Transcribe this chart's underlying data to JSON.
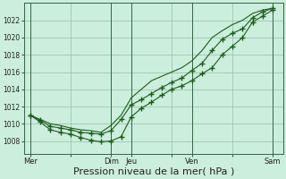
{
  "bg_color": "#cceedd",
  "grid_color": "#99bbaa",
  "line_color": "#1a5e1a",
  "marker_color": "#1a5e1a",
  "xlabel": "Pression niveau de la mer( hPa )",
  "xlabel_fontsize": 8,
  "ylim": [
    1006.5,
    1024.0
  ],
  "yticks": [
    1008,
    1010,
    1012,
    1014,
    1016,
    1018,
    1020,
    1022
  ],
  "xtick_labels": [
    "Mer",
    "",
    "Dim",
    "Jeu",
    "",
    "Ven",
    "",
    "Sam"
  ],
  "xtick_positions": [
    0,
    2,
    4,
    5,
    7,
    8,
    10,
    12
  ],
  "series1_x": [
    0,
    0.5,
    1,
    1.5,
    2,
    2.5,
    3,
    3.5,
    4,
    4.5,
    5,
    5.5,
    6,
    6.5,
    7,
    7.5,
    8,
    8.5,
    9,
    9.5,
    10,
    10.5,
    11,
    11.5,
    12
  ],
  "series1_y": [
    1011.0,
    1010.2,
    1009.3,
    1009.0,
    1008.8,
    1008.4,
    1008.1,
    1007.9,
    1008.0,
    1008.5,
    1010.8,
    1011.8,
    1012.5,
    1013.3,
    1014.0,
    1014.4,
    1015.0,
    1015.8,
    1016.5,
    1018.0,
    1019.0,
    1020.0,
    1021.8,
    1022.5,
    1023.2
  ],
  "series2_x": [
    0,
    0.5,
    1,
    1.5,
    2,
    2.5,
    3,
    3.5,
    4,
    4.5,
    5,
    5.5,
    6,
    6.5,
    7,
    7.5,
    8,
    8.5,
    9,
    9.5,
    10,
    10.5,
    11,
    11.5,
    12
  ],
  "series2_y": [
    1011.0,
    1010.4,
    1009.7,
    1009.5,
    1009.3,
    1009.0,
    1008.9,
    1008.8,
    1009.2,
    1010.5,
    1012.2,
    1012.8,
    1013.5,
    1014.2,
    1014.8,
    1015.3,
    1016.2,
    1017.0,
    1018.5,
    1019.8,
    1020.5,
    1021.0,
    1022.3,
    1023.0,
    1023.4
  ],
  "series3_x": [
    0,
    0.5,
    1,
    1.5,
    2,
    2.5,
    3,
    3.5,
    4,
    4.5,
    5,
    5.5,
    6,
    6.5,
    7,
    7.5,
    8,
    8.5,
    9,
    9.5,
    10,
    10.5,
    11,
    11.5,
    12
  ],
  "series3_y": [
    1011.0,
    1010.5,
    1010.0,
    1009.8,
    1009.5,
    1009.3,
    1009.2,
    1009.0,
    1009.8,
    1011.0,
    1013.0,
    1014.0,
    1015.0,
    1015.5,
    1016.0,
    1016.5,
    1017.3,
    1018.5,
    1020.0,
    1020.8,
    1021.5,
    1022.0,
    1022.8,
    1023.2,
    1023.4
  ],
  "vlines_x": [
    0,
    4,
    5,
    8,
    12
  ],
  "figsize": [
    3.2,
    2.0
  ],
  "dpi": 100
}
